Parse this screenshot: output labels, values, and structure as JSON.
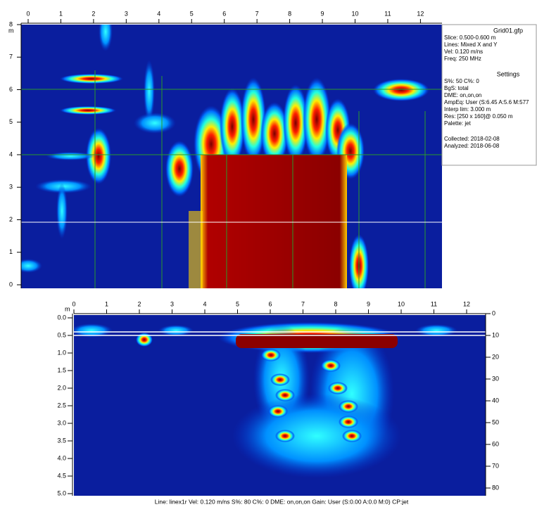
{
  "top_map": {
    "unit": "m",
    "xlim": [
      0,
      12.5
    ],
    "xticks": [
      0,
      1,
      2,
      3,
      4,
      5,
      6,
      7,
      8,
      9,
      10,
      11,
      12
    ],
    "ylim": [
      0,
      8
    ],
    "yticks": [
      0,
      1,
      2,
      3,
      4,
      5,
      6,
      7,
      8
    ]
  },
  "info_panel": {
    "file": "Grid01.gfp",
    "lines": [
      "Slice: 0.500-0.600 m",
      "Lines: Mixed X and Y",
      "Vel: 0.120 m/ns",
      "Freq: 250 MHz"
    ],
    "settings_title": "Settings",
    "settings": [
      "S%: 50  C%: 0",
      "BgS: total",
      "DME: on,on,on",
      "AmpEq: User (S:6.45 A:5.6 M:577",
      "Interp lim: 3.000 m",
      "Res: [250 x 160]@ 0.050 m",
      "Palette: jet"
    ],
    "dates": [
      "Collected: 2018-02-08",
      "Analyzed: 2018-06-08"
    ]
  },
  "profile": {
    "unit": "m",
    "xlim": [
      0,
      12.5
    ],
    "xticks": [
      0,
      1,
      2,
      3,
      4,
      5,
      6,
      7,
      8,
      9,
      10,
      11,
      12
    ],
    "depth_lim": [
      0,
      5.05
    ],
    "depth_ticks": [
      {
        "value": 0,
        "label": "0.0"
      },
      {
        "value": 0.5,
        "label": "0.5"
      },
      {
        "value": 1,
        "label": "1.0"
      },
      {
        "value": 1.5,
        "label": "1.5"
      },
      {
        "value": 2,
        "label": "2.0"
      },
      {
        "value": 2.5,
        "label": "2.5"
      },
      {
        "value": 3,
        "label": "3.0"
      },
      {
        "value": 3.5,
        "label": "3.5"
      },
      {
        "value": 4,
        "label": "4.0"
      },
      {
        "value": 4.5,
        "label": "4.5"
      },
      {
        "value": 5,
        "label": "5.0"
      }
    ],
    "time_lim": [
      0,
      82
    ],
    "time_ticks": [
      0,
      10,
      20,
      30,
      40,
      50,
      60,
      70,
      80
    ],
    "footer": "Line: linex1r  Vel: 0.120 m/ns  S%: 80  C%: 0    DME: on,on,on   Gain: User (S:0.00 A:0.0 M:0)  CP:jet"
  }
}
